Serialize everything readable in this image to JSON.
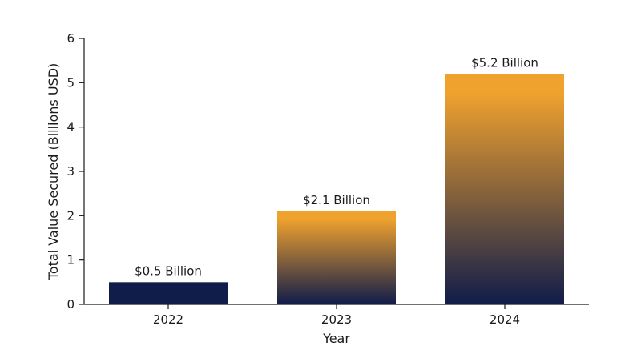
{
  "chart_data": {
    "type": "bar",
    "title": "",
    "xlabel": "Year",
    "ylabel": "Total Value Secured (Billions USD)",
    "categories": [
      "2022",
      "2023",
      "2024"
    ],
    "values": [
      0.5,
      2.1,
      5.2
    ],
    "data_labels": [
      "$0.5 Billion",
      "$2.1 Billion",
      "$5.2 Billion"
    ],
    "ylim": [
      0,
      6
    ],
    "yticks": [
      0,
      1,
      2,
      3,
      4,
      5,
      6
    ],
    "grid": false,
    "legend": "none",
    "colors": {
      "bar_top": "#F0A22E",
      "bar_bottom": "#101C4A",
      "axis": "#1a1a1a"
    }
  }
}
